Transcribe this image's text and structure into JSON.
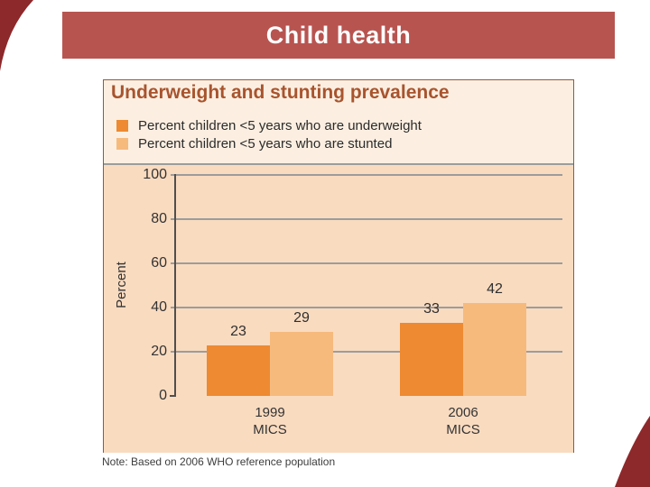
{
  "header": {
    "title": "Child health"
  },
  "note": "Note: Based on 2006 WHO reference population",
  "colors": {
    "title_bar_bg": "#b85450",
    "corner_decoration": "#8d282b",
    "panel_bg": "#fcefe1",
    "panel_border": "#8f5a44",
    "plot_bg": "#f9dbc0",
    "heading": "#a8542e",
    "grid": "#9c9c9c"
  },
  "chart_data": {
    "type": "bar",
    "title": "Underweight and stunting prevalence",
    "ylabel": "Percent",
    "xlabel": "",
    "ylim": [
      0,
      100
    ],
    "yticks": [
      0,
      20,
      40,
      60,
      80,
      100
    ],
    "grid": "horizontal",
    "legend_position": "top",
    "categories": [
      "1999\nMICS",
      "2006\nMICS"
    ],
    "series": [
      {
        "name": "Percent children <5 years who are underweight",
        "color": "#ee8a31",
        "values": [
          23,
          33
        ]
      },
      {
        "name": "Percent children <5 years who are stunted",
        "color": "#f6ba7d",
        "values": [
          29,
          42
        ]
      }
    ]
  }
}
